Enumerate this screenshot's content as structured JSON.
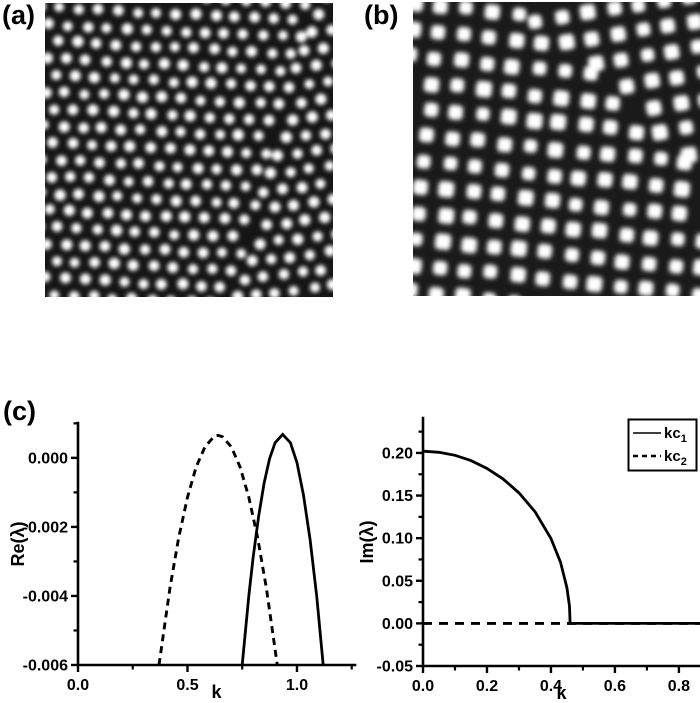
{
  "figure": {
    "background": "#ffffff",
    "ink_color": "#000000",
    "panels": {
      "a": {
        "label": "(a)",
        "description": "hexagonal-dot-pattern-snapshot"
      },
      "b": {
        "label": "(b)",
        "description": "square-dot-pattern-snapshot"
      },
      "c": {
        "label": "(c)",
        "description": "dispersion-curves"
      }
    }
  },
  "patterns": {
    "a": {
      "type": "hex",
      "bg": "#151515",
      "dot_color": "#ffffff",
      "spacing": 19.5,
      "dot_radius": 5.3,
      "blur": 2.2,
      "jitter": 1.2,
      "seed": 7,
      "domains": [
        {
          "angle": 3,
          "region": {
            "a": 1,
            "b": 0.25,
            "c": 265,
            "op": "lt"
          }
        },
        {
          "angle": -7,
          "region": {
            "a": 1,
            "b": 0.25,
            "c": 265,
            "op": "ge"
          }
        }
      ]
    },
    "b": {
      "type": "square",
      "bg": "#1a1a1a",
      "dot_color": "#ffffff",
      "spacing": 26,
      "dot_size": 14.5,
      "corner_radius": 4,
      "blur": 2.5,
      "jitter": 1.5,
      "seed": 13,
      "domains": [
        {
          "angle": 6,
          "region": {
            "a": 0.9,
            "b": -1,
            "c": 90,
            "op": "lt"
          }
        },
        {
          "angle": -9,
          "region": {
            "a": 0.9,
            "b": -1,
            "c": 90,
            "op": "ge"
          }
        }
      ]
    }
  },
  "chart_data": [
    {
      "name": "re-lambda-vs-k",
      "type": "line",
      "title": "",
      "xlabel": "k",
      "ylabel": "Re(λ)",
      "grid": false,
      "xlim": [
        0,
        1.265
      ],
      "ylim": [
        -0.006,
        0.00101
      ],
      "xticks": {
        "major": [
          0.0,
          0.5,
          1.0
        ],
        "minor": [
          0.25,
          0.75,
          1.25
        ],
        "labels": [
          "0.0",
          "0.5",
          "1.0"
        ]
      },
      "yticks": {
        "major": [
          0.0,
          -0.002,
          -0.004,
          -0.006
        ],
        "minor": [
          0.001,
          -0.001,
          -0.003,
          -0.005
        ],
        "labels": [
          "0.000",
          "-0.002",
          "-0.004",
          "-0.006"
        ]
      },
      "series": [
        {
          "name": "kc1",
          "style": "solid",
          "points": [
            [
              0.75,
              -0.006
            ],
            [
              0.78,
              -0.004
            ],
            [
              0.8,
              -0.00287
            ],
            [
              0.825,
              -0.00168
            ],
            [
              0.85,
              -0.00073
            ],
            [
              0.875,
              -2e-05
            ],
            [
              0.9,
              0.00044
            ],
            [
              0.935,
              0.00068
            ],
            [
              0.97,
              0.00044
            ],
            [
              1.0,
              -0.00014
            ],
            [
              1.03,
              -0.00108
            ],
            [
              1.06,
              -0.00237
            ],
            [
              1.09,
              -0.004
            ],
            [
              1.12,
              -0.006
            ]
          ]
        },
        {
          "name": "kc2",
          "style": "dashed",
          "dash": "7 5",
          "points": [
            [
              0.37,
              -0.006
            ],
            [
              0.42,
              -0.00376
            ],
            [
              0.46,
              -0.00231
            ],
            [
              0.5,
              -0.00114
            ],
            [
              0.54,
              -0.00026
            ],
            [
              0.58,
              0.00032
            ],
            [
              0.62,
              0.00061
            ],
            [
              0.64,
              0.00065
            ],
            [
              0.66,
              0.00061
            ],
            [
              0.7,
              0.00032
            ],
            [
              0.74,
              -0.00026
            ],
            [
              0.78,
              -0.00114
            ],
            [
              0.82,
              -0.00231
            ],
            [
              0.86,
              -0.00376
            ],
            [
              0.91,
              -0.006
            ]
          ]
        }
      ]
    },
    {
      "name": "im-lambda-vs-k",
      "type": "line",
      "title": "",
      "xlabel": "k",
      "ylabel": "Im(λ)",
      "grid": false,
      "xlim": [
        0,
        0.866
      ],
      "ylim": [
        -0.05,
        0.241
      ],
      "xticks": {
        "major": [
          0.0,
          0.2,
          0.4,
          0.6,
          0.8
        ],
        "minor": [
          0.1,
          0.3,
          0.5,
          0.7
        ],
        "labels": [
          "0.0",
          "0.2",
          "0.4",
          "0.6",
          "0.8"
        ]
      },
      "yticks": {
        "major": [
          0.2,
          0.15,
          0.1,
          0.05,
          0.0,
          -0.05
        ],
        "minor": [
          0.225,
          0.175,
          0.125,
          0.075,
          0.025,
          -0.025
        ],
        "labels": [
          "0.20",
          "0.15",
          "0.10",
          "0.05",
          "0.00",
          "-0.05"
        ]
      },
      "legend": {
        "position": "top-right",
        "entries": [
          {
            "label": "kc",
            "sub": "1",
            "style": "solid"
          },
          {
            "label": "kc",
            "sub": "2",
            "style": "dashed"
          }
        ]
      },
      "series": [
        {
          "name": "kc1",
          "style": "solid",
          "points": [
            [
              0,
              0.202
            ],
            [
              0.05,
              0.2008
            ],
            [
              0.1,
              0.1972
            ],
            [
              0.15,
              0.191
            ],
            [
              0.2,
              0.1817
            ],
            [
              0.25,
              0.1695
            ],
            [
              0.3,
              0.1531
            ],
            [
              0.35,
              0.1311
            ],
            [
              0.4,
              0.0997
            ],
            [
              0.43,
              0.0718
            ],
            [
              0.45,
              0.0419
            ],
            [
              0.458,
              0.02
            ],
            [
              0.46,
              0.0
            ],
            [
              0.6,
              0.0
            ],
            [
              0.866,
              0.0
            ]
          ]
        },
        {
          "name": "kc2",
          "style": "dashed",
          "dash": "9 7",
          "points": [
            [
              0,
              0.0
            ],
            [
              0.866,
              0.0
            ]
          ]
        }
      ]
    }
  ]
}
